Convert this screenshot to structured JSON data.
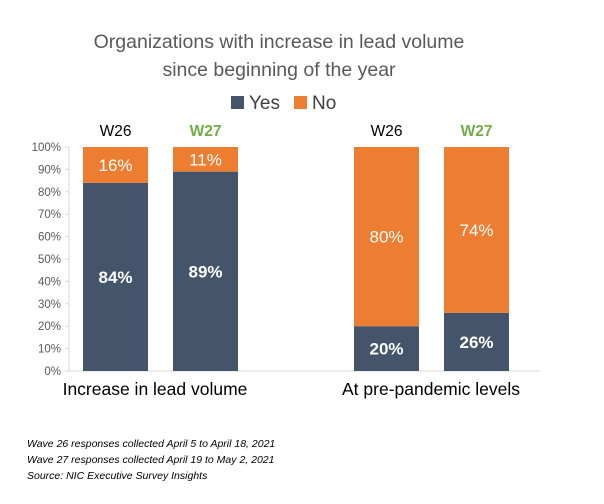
{
  "chart_data": {
    "type": "bar",
    "stacked": true,
    "title_lines": [
      "Organizations with increase in lead volume",
      "since beginning of the year"
    ],
    "legend": {
      "placement": "top",
      "entries": [
        "Yes",
        "No"
      ]
    },
    "colors": {
      "Yes": "#44546a",
      "No": "#ed7d31",
      "w27_label": "#70ad47"
    },
    "y_axis": {
      "ylim": [
        0,
        100
      ],
      "ticks": [
        "0%",
        "10%",
        "20%",
        "30%",
        "40%",
        "50%",
        "60%",
        "70%",
        "80%",
        "90%",
        "100%"
      ],
      "grid": false
    },
    "groups": [
      {
        "name": "Increase in lead volume",
        "bars": [
          {
            "wave": "W26",
            "yes": 84,
            "no": 16,
            "yes_label": "84%",
            "no_label": "16%"
          },
          {
            "wave": "W27",
            "yes": 89,
            "no": 11,
            "yes_label": "89%",
            "no_label": "11%"
          }
        ]
      },
      {
        "name": "At pre-pandemic levels",
        "bars": [
          {
            "wave": "W26",
            "yes": 20,
            "no": 80,
            "yes_label": "20%",
            "no_label": "80%"
          },
          {
            "wave": "W27",
            "yes": 26,
            "no": 74,
            "yes_label": "26%",
            "no_label": "74%"
          }
        ]
      }
    ]
  },
  "footnotes": [
    "Wave 26 responses collected  April 5 to April 18, 2021",
    "Wave 27 responses collected  April 19 to May 2, 2021",
    "Source: NIC Executive Survey Insights"
  ]
}
